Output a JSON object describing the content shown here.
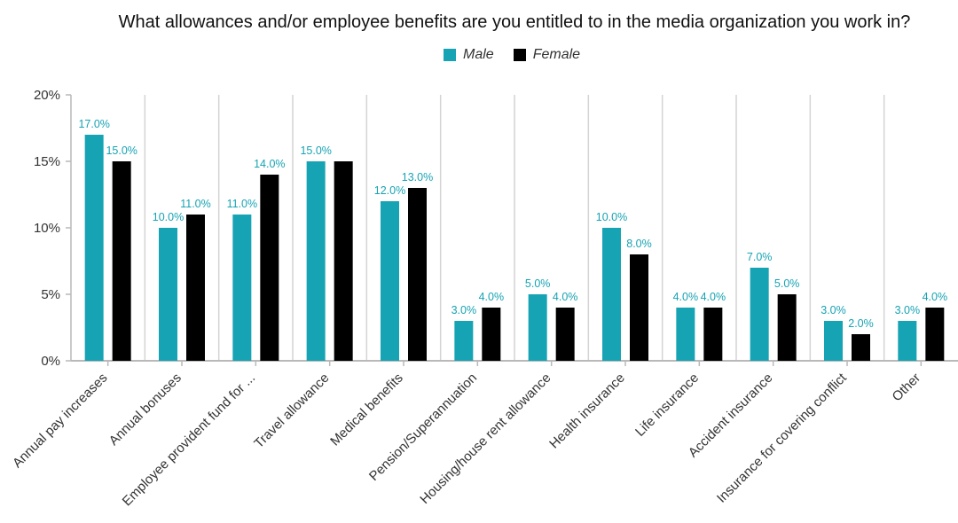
{
  "chart_data": {
    "type": "bar",
    "title": "What allowances and/or employee benefits are you entitled to in the media organization you work in?",
    "categories": [
      "Annual pay increases",
      "Annual bonuses",
      "Employee provident fund for ...",
      "Travel allowance",
      "Medical benefits",
      "Pension/Superannuation",
      "Housing/house rent allowance",
      "Health insurance",
      "Life insurance",
      "Accident insurance",
      "Insurance for covering conflict",
      "Other"
    ],
    "series": [
      {
        "name": "Male",
        "color": "#16a3b3",
        "values": [
          17.0,
          10.0,
          11.0,
          15.0,
          12.0,
          3.0,
          5.0,
          10.0,
          4.0,
          7.0,
          3.0,
          3.0
        ],
        "labels": [
          "17.0%",
          "10.0%",
          "11.0%",
          "15.0%",
          "12.0%",
          "3.0%",
          "5.0%",
          "10.0%",
          "4.0%",
          "7.0%",
          "3.0%",
          "3.0%"
        ]
      },
      {
        "name": "Female",
        "color": "#000000",
        "values": [
          15.0,
          11.0,
          14.0,
          15.0,
          13.0,
          4.0,
          4.0,
          8.0,
          4.0,
          5.0,
          2.0,
          4.0
        ],
        "labels": [
          "15.0%",
          "11.0%",
          "14.0%",
          "",
          "13.0%",
          "4.0%",
          "4.0%",
          "8.0%",
          "4.0%",
          "5.0%",
          "2.0%",
          "4.0%"
        ]
      }
    ],
    "ylim": [
      0,
      20
    ],
    "yticks": [
      "0%",
      "5%",
      "10%",
      "15%",
      "20%"
    ],
    "ytick_values": [
      0,
      5,
      10,
      15,
      20
    ],
    "grid": "vertical separators",
    "legend_position": "top-center",
    "data_label_color": "#16a3b3"
  }
}
